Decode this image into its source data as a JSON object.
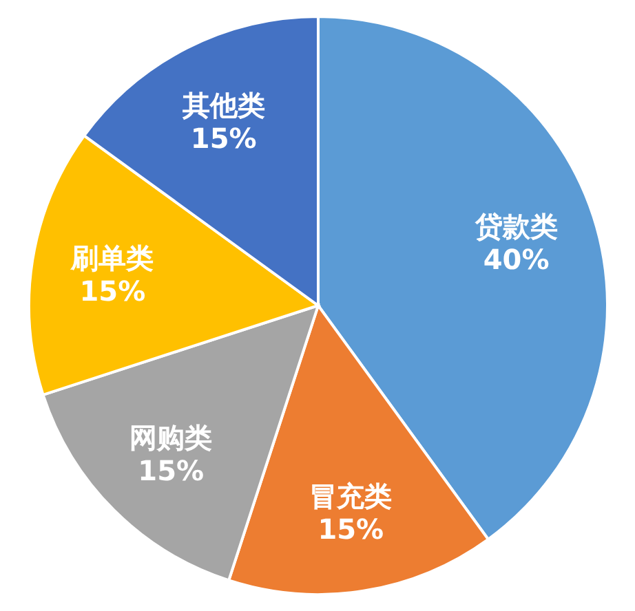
{
  "chart_data": {
    "type": "pie",
    "categories": [
      "贷款类",
      "冒充类",
      "网购类",
      "刷单类",
      "其他类"
    ],
    "values": [
      40,
      15,
      15,
      15,
      15
    ],
    "colors": [
      "#5b9bd5",
      "#ed7d31",
      "#a5a5a5",
      "#ffc000",
      "#4472c4"
    ],
    "value_labels": [
      "40%",
      "15%",
      "15%",
      "15%",
      "15%"
    ]
  }
}
